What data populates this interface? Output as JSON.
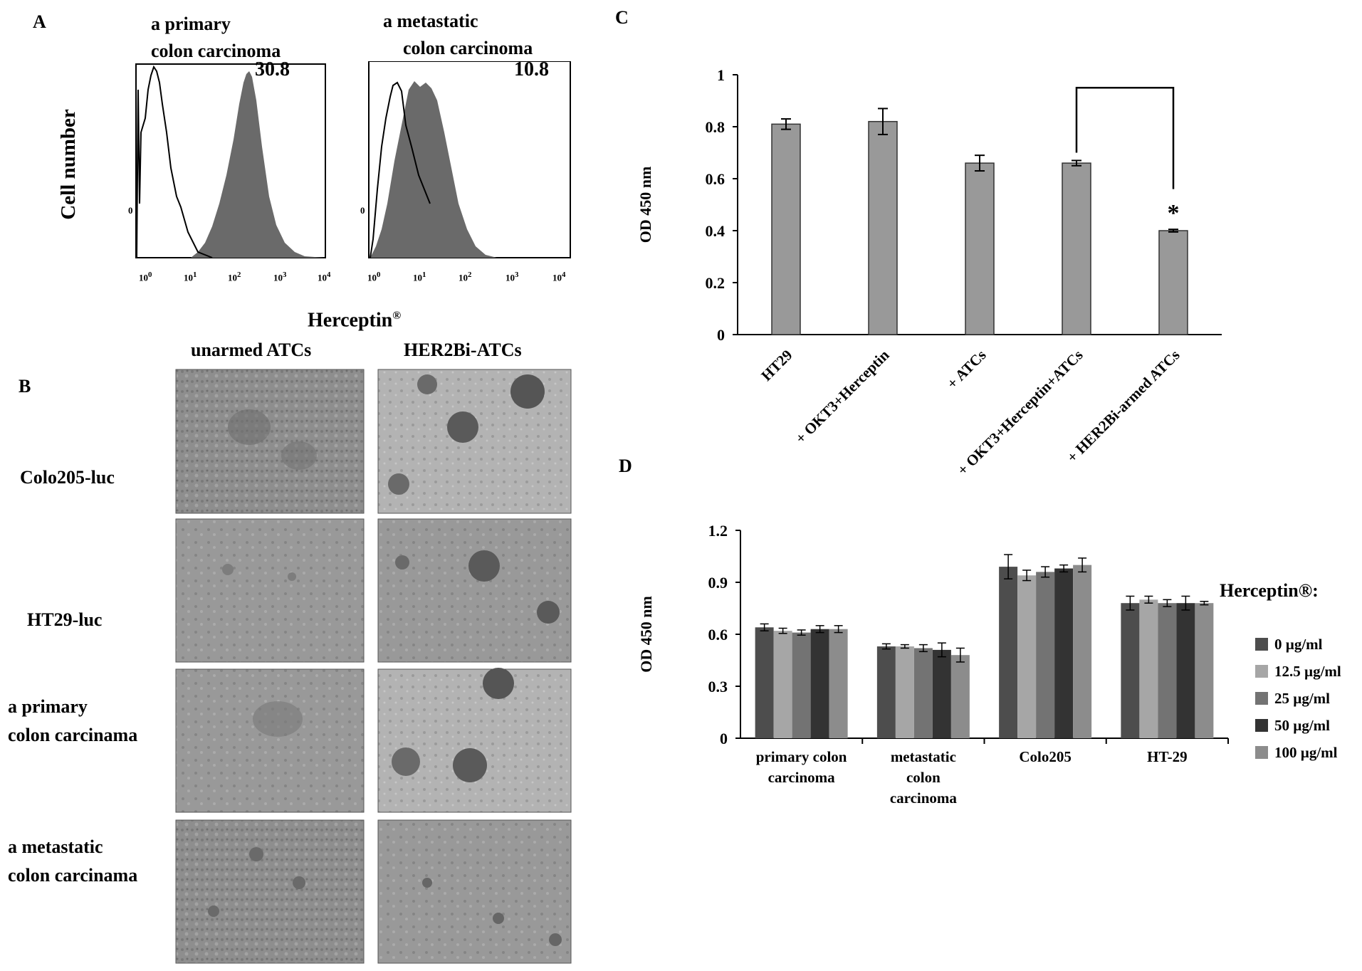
{
  "panels": {
    "A": {
      "letter": "A",
      "ylabel": "Cell number",
      "xlabel": "Herceptin",
      "xlabel_sup": "®",
      "y_zero": "0",
      "x_ticks": [
        "10",
        "10",
        "10",
        "10",
        "10"
      ],
      "x_tick_exps": [
        "0",
        "1",
        "2",
        "3",
        "4"
      ],
      "histograms": [
        {
          "title_line1": "a primary",
          "title_line2": "colon carcinoma",
          "value": "30.8"
        },
        {
          "title_line1": "a metastatic",
          "title_line2": "colon carcinoma",
          "value": "10.8"
        }
      ]
    },
    "B": {
      "letter": "B",
      "col_headers": [
        "unarmed ATCs",
        "HER2Bi-ATCs"
      ],
      "row_labels": [
        {
          "line1": "Colo205-luc",
          "line2": ""
        },
        {
          "line1": "HT29-luc",
          "line2": ""
        },
        {
          "line1": "a primary",
          "line2": "colon carcinama"
        },
        {
          "line1": "a metastatic",
          "line2": "colon carcinama"
        }
      ]
    },
    "C": {
      "letter": "C"
    },
    "D": {
      "letter": "D"
    }
  },
  "chart_data": [
    {
      "panel": "C",
      "type": "bar",
      "ylabel": "OD 450 nm",
      "ylim": [
        0,
        1
      ],
      "yticks": [
        "0",
        "0.2",
        "0.4",
        "0.6",
        "0.8",
        "1"
      ],
      "categories": [
        "HT29",
        "+ OKT3+Herceptin",
        "+ ATCs",
        "+ OKT3+Herceptin+ATCs",
        "+ HER2Bi-armed ATCs"
      ],
      "values": [
        0.81,
        0.82,
        0.66,
        0.66,
        0.4
      ],
      "errors": [
        0.02,
        0.05,
        0.03,
        0.01,
        0.005
      ],
      "bar_color": "#999999",
      "significance": {
        "from": 3,
        "to": 4,
        "marker": "*"
      }
    },
    {
      "panel": "D",
      "type": "bar",
      "ylabel": "OD 450 nm",
      "ylim": [
        0,
        1.2
      ],
      "yticks": [
        "0",
        "0.3",
        "0.6",
        "0.9",
        "1.2"
      ],
      "categories": [
        {
          "line1": "primary colon",
          "line2": "carcinoma",
          "line3": ""
        },
        {
          "line1": "metastatic",
          "line2": "colon",
          "line3": "carcinoma"
        },
        {
          "line1": "Colo205",
          "line2": "",
          "line3": ""
        },
        {
          "line1": "HT-29",
          "line2": "",
          "line3": ""
        }
      ],
      "legend_title": "Herceptin®:",
      "series": [
        {
          "name": "0 µg/ml",
          "color": "#4d4d4d",
          "values": [
            0.64,
            0.53,
            0.99,
            0.78
          ],
          "errors": [
            0.02,
            0.015,
            0.07,
            0.04
          ]
        },
        {
          "name": "12.5 µg/ml",
          "color": "#a6a6a6",
          "values": [
            0.62,
            0.53,
            0.94,
            0.8
          ],
          "errors": [
            0.015,
            0.01,
            0.03,
            0.02
          ]
        },
        {
          "name": "25 µg/ml",
          "color": "#737373",
          "values": [
            0.61,
            0.52,
            0.96,
            0.78
          ],
          "errors": [
            0.015,
            0.02,
            0.03,
            0.02
          ]
        },
        {
          "name": "50 µg/ml",
          "color": "#333333",
          "values": [
            0.63,
            0.51,
            0.98,
            0.78
          ],
          "errors": [
            0.02,
            0.04,
            0.02,
            0.04
          ]
        },
        {
          "name": "100 µg/ml",
          "color": "#8c8c8c",
          "values": [
            0.63,
            0.48,
            1.0,
            0.78
          ],
          "errors": [
            0.02,
            0.04,
            0.04,
            0.01
          ]
        }
      ]
    }
  ]
}
